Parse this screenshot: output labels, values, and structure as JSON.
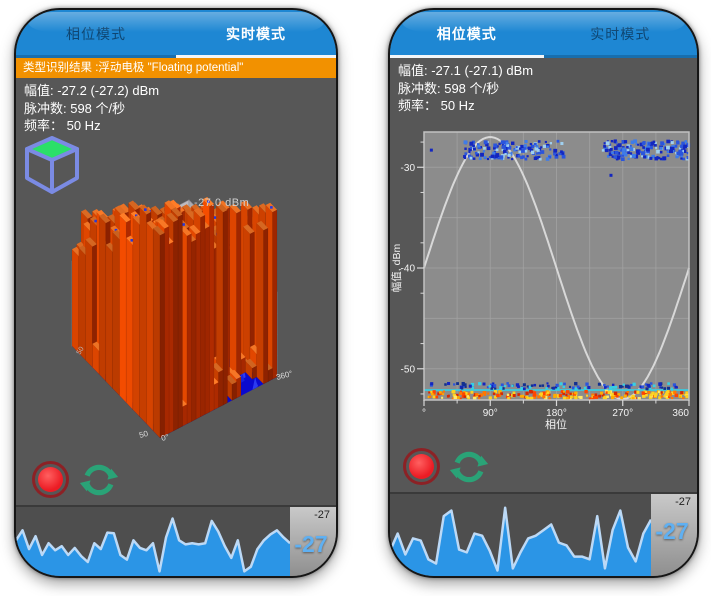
{
  "page": {
    "background": "#ffffff"
  },
  "colors": {
    "header_blue": "#1e87d3",
    "banner_orange": "#f29100",
    "body_gray": "#575757",
    "record_red": "#ec1c24",
    "refresh_green": "#2aa377",
    "wave_fill_blue": "#2b95e6",
    "wave_line_blue": "#bcd9f6",
    "big_readout_blue": "#5fb0f2"
  },
  "phones": [
    {
      "side": "left",
      "tabs": [
        {
          "label": "相位模式",
          "active": false
        },
        {
          "label": "实时模式",
          "active": true
        }
      ],
      "banner": "类型识别结果 :浮动电极 \"Floating potential\"",
      "info": {
        "amplitude": "幅值: -27.2 (-27.2) dBm",
        "pulses": "脉冲数: 598 个/秒",
        "frequency": "频率：  50 Hz"
      },
      "wave_axis": {
        "top": "-27",
        "main": "-27"
      }
    },
    {
      "side": "right",
      "tabs": [
        {
          "label": "相位模式",
          "active": true
        },
        {
          "label": "实时模式",
          "active": false
        }
      ],
      "banner": null,
      "info": {
        "amplitude": "幅值: -27.1 (-27.1) dBm",
        "pulses": "脉冲数: 598 个/秒",
        "frequency": "频率：  50 Hz"
      },
      "wave_axis": {
        "top": "-27",
        "main": "-27"
      }
    }
  ],
  "chart_data": [
    {
      "type": "3d-bar",
      "phone": "left",
      "annotation": "-27.0 dBm",
      "x_axis": {
        "ticks": [
          "0°",
          "360°"
        ],
        "range_deg": [
          0,
          360
        ]
      },
      "depth_tick": "50",
      "side_tick": "50",
      "max_dbm": -27.0,
      "bar_grid": {
        "cols": 26,
        "rows": 13,
        "seed": 7
      },
      "palette": {
        "floor": "#0a0ace",
        "floor_spike": "#2c3bf0",
        "wall": "#bdbbc1",
        "bar_bright": "#d84400",
        "bar_dark": "#9c2600",
        "bar_top": "#e87024",
        "dot_blue": "#2438e0"
      }
    },
    {
      "type": "scatter-line",
      "phone": "right",
      "xlabel": "相位",
      "ylabel": "幅值, dBm",
      "xlim": [
        0,
        360
      ],
      "ylim": [
        -53.1,
        -26.5
      ],
      "xtick_labels": [
        "°",
        "90°",
        "180°",
        "270°",
        "360"
      ],
      "xtick_values": [
        0,
        90,
        180,
        270,
        360
      ],
      "ytick_values": [
        -30,
        -40,
        -50
      ],
      "grid_x_step_deg": 45,
      "grid_y_step_db": 5,
      "sine": {
        "mid_dbm": -40,
        "amplitude_db": 13
      },
      "clusters": [
        {
          "phase_range": [
            55,
            192
          ],
          "amp_range": [
            -29.2,
            -27.4
          ],
          "count": 160
        },
        {
          "phase_range": [
            243,
            360
          ],
          "amp_range": [
            -29.2,
            -27.4
          ],
          "count": 160
        }
      ],
      "noise_band": {
        "phase_range": [
          2,
          358
        ],
        "yellow_amp_range": [
          -53.0,
          -52.25
        ],
        "cyan_line_amp": -52.12,
        "blue_amp_range": [
          -52.0,
          -51.45
        ]
      },
      "stray_points": [
        [
          10,
          -28.3
        ],
        [
          254,
          -30.8
        ]
      ],
      "seed": 11
    },
    {
      "type": "area",
      "phone": "left",
      "label_top": "-27",
      "label_main": "-27",
      "values": [
        0.55,
        0.72,
        0.4,
        0.62,
        0.3,
        0.5,
        0.38,
        0.45,
        0.3,
        0.42,
        0.28,
        0.18,
        0.5,
        0.4,
        0.68,
        0.67,
        0.3,
        0.22,
        0.55,
        0.42,
        0.38,
        0.5,
        0.02,
        0.6,
        0.92,
        0.55,
        0.48,
        0.5,
        0.48,
        0.5,
        0.88,
        0.7,
        0.45,
        0.25,
        0.55,
        0.02,
        0.1,
        0.4,
        0.55,
        0.65,
        0.72,
        0.6,
        0.5
      ]
    },
    {
      "type": "area",
      "phone": "right",
      "label_top": "-27",
      "label_main": "-27",
      "values": [
        0.3,
        0.55,
        0.25,
        0.48,
        0.45,
        0.18,
        0.12,
        0.8,
        0.88,
        0.32,
        0.28,
        0.55,
        0.52,
        0.3,
        0.02,
        0.92,
        0.05,
        0.28,
        0.48,
        0.52,
        0.6,
        0.68,
        0.42,
        0.38,
        0.22,
        0.22,
        0.18,
        0.8,
        0.05,
        0.6,
        0.88,
        0.35,
        0.15,
        0.55,
        0.75
      ]
    }
  ]
}
